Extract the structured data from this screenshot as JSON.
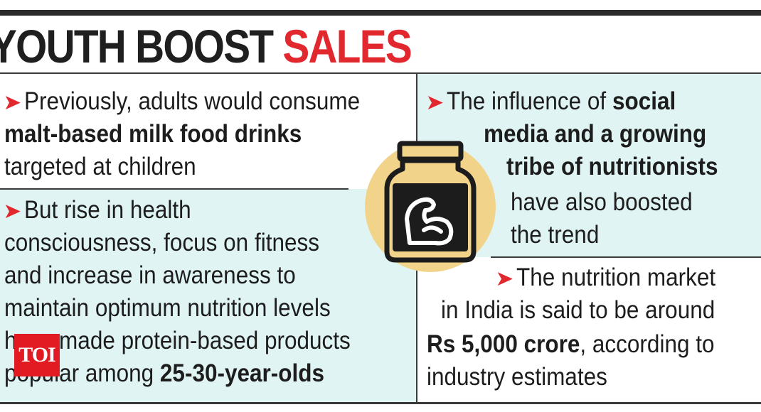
{
  "headline": {
    "part1": "YOUTH BOOST",
    "part2": "SALES"
  },
  "point1": {
    "line1": "Previously, adults would consume",
    "line2_bold": "malt-based milk food drinks",
    "line3": "targeted at children"
  },
  "point2": {
    "line1": "But rise in health",
    "line2": "consciousness, focus on fitness",
    "line3": "and increase in awareness to",
    "line4": "maintain optimum nutrition levels",
    "line5": "have made protein-based products",
    "line6_pre": "popular among",
    "line6_bold": "25-30-year-olds"
  },
  "point3": {
    "line1_pre": "The influence of",
    "line1_bold": "social",
    "line2_bold": "media and a growing",
    "line3_bold": "tribe of nutritionists",
    "line4": "have also boosted",
    "line5": "the trend"
  },
  "point4": {
    "line1": "The nutrition market",
    "line2": "in India is said to be around",
    "line3_bold": "Rs 5,000 crore",
    "line3_post": ", according to",
    "line4": "industry estimates"
  },
  "icons": {
    "bullet": "arrow-bullet-icon",
    "jar": "protein-jar-icon",
    "muscle": "flexed-arm-icon"
  },
  "logo": {
    "text": "TOI"
  },
  "colors": {
    "accent_red": "#e0282e",
    "panel_tint": "#dff4f3",
    "jar_gold": "#f2d38a",
    "jar_dark": "#1c1c1c"
  }
}
